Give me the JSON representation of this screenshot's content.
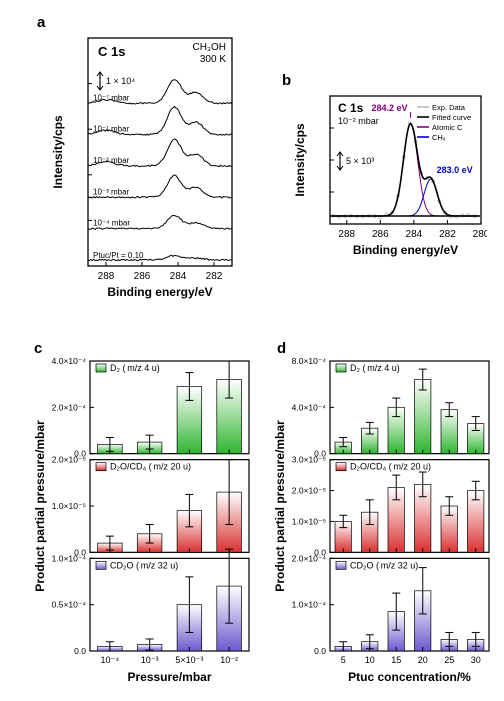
{
  "panel_a": {
    "label": "a",
    "title_left": "C 1s",
    "title_right_line1": "CH₃OH",
    "title_right_line2": "300 K",
    "scalebar": "1 × 10⁴",
    "xlabel": "Binding energy/eV",
    "ylabel": "Intensity/cps",
    "xlim": [
      281,
      289
    ],
    "xticks": [
      282,
      284,
      286,
      288
    ],
    "trace_labels": [
      "10⁻⁷ mbar",
      "10⁻¹ mbar",
      "10⁻² mbar",
      "10⁻³ mbar",
      "10⁻⁴ mbar",
      "Ptuc/Pt = 0.10"
    ],
    "line_color": "#000000",
    "peak_positions": [
      284.2,
      283.0
    ]
  },
  "panel_b": {
    "label": "b",
    "title": "C 1s",
    "subtitle": "10⁻² mbar",
    "scalebar": "5 × 10³",
    "xlabel": "Binding energy/eV",
    "ylabel": "Intensity/cps",
    "xlim": [
      280,
      289
    ],
    "xticks": [
      280,
      282,
      284,
      286,
      288
    ],
    "peak1": {
      "label": "284.2 eV",
      "color": "#800080"
    },
    "peak2": {
      "label": "283.0 eV",
      "color": "#0000cc"
    },
    "legend": [
      {
        "label": "Exp. Data",
        "color": "#bbbbbb"
      },
      {
        "label": "Fitted curve",
        "color": "#000000"
      },
      {
        "label": "Atomic C",
        "color": "#800080"
      },
      {
        "label": "CHₓ",
        "color": "#0000cc"
      }
    ],
    "border_color": "#000000"
  },
  "panel_c": {
    "label": "c",
    "xlabel": "Pressure/mbar",
    "ylabel": "Product partial pressure/mbar",
    "xticks_labels": [
      "10⁻⁴",
      "10⁻³",
      "5×10⁻³",
      "10⁻²"
    ],
    "sub1": {
      "legend": "D₂ (m/z 4 u)",
      "color": "#2fb52f",
      "ymax": 0.0004,
      "yticks": [
        "0.0",
        "2.0×10⁻⁴",
        "4.0×10⁻⁴"
      ],
      "values": [
        4e-05,
        5e-05,
        0.00029,
        0.00032
      ],
      "errors": [
        3e-05,
        3e-05,
        6e-05,
        8e-05
      ]
    },
    "sub2": {
      "legend": "D₂O/CD₄ (m/z 20 u)",
      "color": "#d93030",
      "ymax": 2e-05,
      "yticks": [
        "0.0",
        "1.0×10⁻⁵",
        "2.0×10⁻⁵"
      ],
      "values": [
        2e-06,
        4e-06,
        9e-06,
        1.3e-05
      ],
      "errors": [
        1.5e-06,
        2e-06,
        3.5e-06,
        7e-06
      ]
    },
    "sub3": {
      "legend": "CD₂O (m/z 32 u)",
      "color": "#6a5acd",
      "ymax": 0.0001,
      "yticks": [
        "0.0",
        "0.5×10⁻⁴",
        "1.0×10⁻⁴"
      ],
      "values": [
        5e-06,
        7e-06,
        5e-05,
        7e-05
      ],
      "errors": [
        5e-06,
        6e-06,
        3e-05,
        4e-05
      ]
    }
  },
  "panel_d": {
    "label": "d",
    "xlabel": "Ptuc concentration/%",
    "ylabel": "Product partial pressure/mbar",
    "xticks_labels": [
      "5",
      "10",
      "15",
      "20",
      "25",
      "30"
    ],
    "sub1": {
      "legend": "D₂ (m/z 4 u)",
      "color": "#2fb52f",
      "ymax": 0.0008,
      "yticks": [
        "0.0",
        "4.0×10⁻⁴",
        "8.0×10⁻⁴"
      ],
      "values": [
        0.0001,
        0.00022,
        0.0004,
        0.00064,
        0.00038,
        0.00026
      ],
      "errors": [
        4e-05,
        5e-05,
        8e-05,
        9e-05,
        6e-05,
        6e-05
      ]
    },
    "sub2": {
      "legend": "D₂O/CD₄ (m/z 20 u)",
      "color": "#d93030",
      "ymax": 3e-05,
      "yticks": [
        "0.0",
        "1.0×10⁻⁵",
        "2.0×10⁻⁵",
        "3.0×10⁻⁵"
      ],
      "values": [
        1e-05,
        1.3e-05,
        2.1e-05,
        2.2e-05,
        1.5e-05,
        2e-05
      ],
      "errors": [
        2e-06,
        4e-06,
        4e-06,
        4e-06,
        3e-06,
        3e-06
      ]
    },
    "sub3": {
      "legend": "CD₂O (m/z 32 u)",
      "color": "#6a5acd",
      "ymax": 0.0002,
      "yticks": [
        "0.0",
        "1.0×10⁻⁴",
        "2.0×10⁻⁴"
      ],
      "values": [
        1e-05,
        2e-05,
        8.5e-05,
        0.00013,
        2.5e-05,
        2.5e-05
      ],
      "errors": [
        1e-05,
        1.5e-05,
        4e-05,
        5e-05,
        1.5e-05,
        1.5e-05
      ]
    }
  },
  "axis_color": "#000000",
  "text_color": "#000000",
  "bg": "#ffffff"
}
